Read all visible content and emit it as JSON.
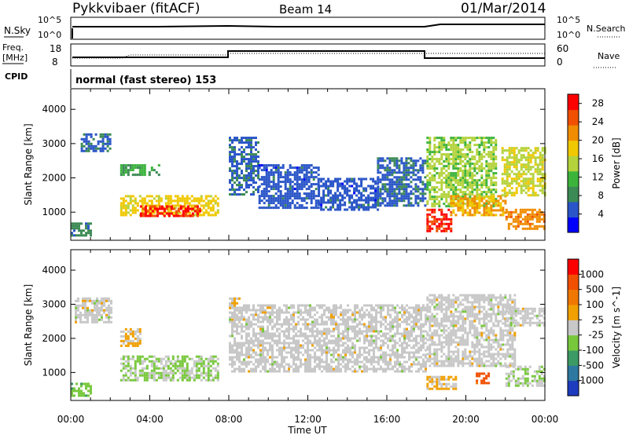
{
  "header": {
    "title": "Pykkvibaer (fitACF)",
    "beam": "Beam 14",
    "date": "01/Mar/2014"
  },
  "strips": {
    "nsky_label": "N.Sky",
    "nsky_ticks": [
      "10^5",
      "10^0"
    ],
    "nsearch_label": "N.Search",
    "nsearch_ticks": [
      "10^5",
      "10^0"
    ],
    "freq_label_line1": "Freq.",
    "freq_label_line2": "[MHz]",
    "freq_ticks": [
      "18",
      "8"
    ],
    "nave_label": "Nave",
    "nave_ticks": [
      "60",
      "0"
    ],
    "cpid_label": "CPID",
    "cpid_text": "normal (fast stereo) 153"
  },
  "chart_data": [
    {
      "type": "heatmap",
      "title": "",
      "xlabel": "Time UT",
      "ylabel": "Slant Range [km]",
      "x_ticks": [
        "00:00",
        "04:00",
        "08:00",
        "12:00",
        "16:00",
        "20:00",
        "00:00"
      ],
      "y_ticks": [
        1000,
        2000,
        3000,
        4000
      ],
      "xlim_hours": [
        0,
        24
      ],
      "ylim_km": [
        180,
        4600
      ],
      "colorbar": {
        "label": "Power [dB]",
        "ticks": [
          4,
          8,
          12,
          16,
          20,
          24,
          28
        ],
        "range": [
          0,
          30
        ],
        "colors": [
          "#0000ff",
          "#2a55c8",
          "#3c8a55",
          "#3cb43c",
          "#b4d23c",
          "#f0c800",
          "#f08c00",
          "#f05000",
          "#ff0000"
        ]
      },
      "regions": [
        {
          "start_h": 0.0,
          "end_h": 1.0,
          "range_km": [
            300,
            700
          ],
          "value_db": 8
        },
        {
          "start_h": 0.5,
          "end_h": 2.0,
          "range_km": [
            2800,
            3300
          ],
          "value_db": 6
        },
        {
          "start_h": 2.5,
          "end_h": 4.5,
          "range_km": [
            2100,
            2400
          ],
          "value_db": 10
        },
        {
          "start_h": 2.5,
          "end_h": 7.5,
          "range_km": [
            900,
            1500
          ],
          "value_db": 18
        },
        {
          "start_h": 3.5,
          "end_h": 6.5,
          "range_km": [
            900,
            1200
          ],
          "value_db": 27
        },
        {
          "start_h": 8.0,
          "end_h": 9.5,
          "range_km": [
            1500,
            3200
          ],
          "value_db": 6
        },
        {
          "start_h": 9.5,
          "end_h": 12.5,
          "range_km": [
            1100,
            2400
          ],
          "value_db": 5
        },
        {
          "start_h": 12.5,
          "end_h": 15.5,
          "range_km": [
            1100,
            2000
          ],
          "value_db": 5
        },
        {
          "start_h": 15.5,
          "end_h": 18.0,
          "range_km": [
            1200,
            2600
          ],
          "value_db": 6
        },
        {
          "start_h": 18.0,
          "end_h": 21.5,
          "range_km": [
            1200,
            3200
          ],
          "value_db": 14
        },
        {
          "start_h": 18.0,
          "end_h": 19.2,
          "range_km": [
            450,
            1100
          ],
          "value_db": 27
        },
        {
          "start_h": 19.2,
          "end_h": 22.0,
          "range_km": [
            900,
            1500
          ],
          "value_db": 20
        },
        {
          "start_h": 21.8,
          "end_h": 24.0,
          "range_km": [
            1500,
            2900
          ],
          "value_db": 16
        },
        {
          "start_h": 22.0,
          "end_h": 24.0,
          "range_km": [
            500,
            1100
          ],
          "value_db": 22
        }
      ]
    },
    {
      "type": "heatmap",
      "title": "",
      "xlabel": "Time UT",
      "ylabel": "Slant Range [km]",
      "x_ticks": [
        "00:00",
        "04:00",
        "08:00",
        "12:00",
        "16:00",
        "20:00",
        "00:00"
      ],
      "y_ticks": [
        1000,
        2000,
        3000,
        4000
      ],
      "xlim_hours": [
        0,
        24
      ],
      "ylim_km": [
        180,
        4600
      ],
      "colorbar": {
        "label": "Velocity [m s^-1]",
        "ticks": [
          "1000",
          "500",
          "100",
          "25",
          "-25",
          "-100",
          "-500",
          "-1000"
        ],
        "range": [
          -1200,
          1200
        ],
        "colors": [
          "#1e3cbe",
          "#2d78a0",
          "#3c9b64",
          "#78c83c",
          "#c8c8c8",
          "#f0a000",
          "#f07800",
          "#f05000",
          "#ff0000"
        ]
      },
      "regions": [
        {
          "start_h": 0.0,
          "end_h": 1.0,
          "range_km": [
            300,
            700
          ],
          "value_ms": -300
        },
        {
          "start_h": 0.2,
          "end_h": 2.0,
          "range_km": [
            2500,
            3200
          ],
          "value_ms": 0
        },
        {
          "start_h": 2.5,
          "end_h": 3.5,
          "range_km": [
            1800,
            2300
          ],
          "value_ms": 150
        },
        {
          "start_h": 2.5,
          "end_h": 7.5,
          "range_km": [
            800,
            1500
          ],
          "value_ms": -150
        },
        {
          "start_h": 8.0,
          "end_h": 8.5,
          "range_km": [
            2500,
            3200
          ],
          "value_ms": 150
        },
        {
          "start_h": 8.0,
          "end_h": 18.0,
          "range_km": [
            1000,
            3000
          ],
          "value_ms": 0
        },
        {
          "start_h": 18.0,
          "end_h": 22.5,
          "range_km": [
            1200,
            3300
          ],
          "value_ms": 0
        },
        {
          "start_h": 18.0,
          "end_h": 19.5,
          "range_km": [
            500,
            900
          ],
          "value_ms": 200
        },
        {
          "start_h": 20.5,
          "end_h": 21.2,
          "range_km": [
            700,
            1000
          ],
          "value_ms": 800
        },
        {
          "start_h": 22.0,
          "end_h": 24.0,
          "range_km": [
            600,
            1200
          ],
          "value_ms": -150
        },
        {
          "start_h": 22.0,
          "end_h": 24.0,
          "range_km": [
            2400,
            2900
          ],
          "value_ms": 0
        }
      ]
    }
  ]
}
